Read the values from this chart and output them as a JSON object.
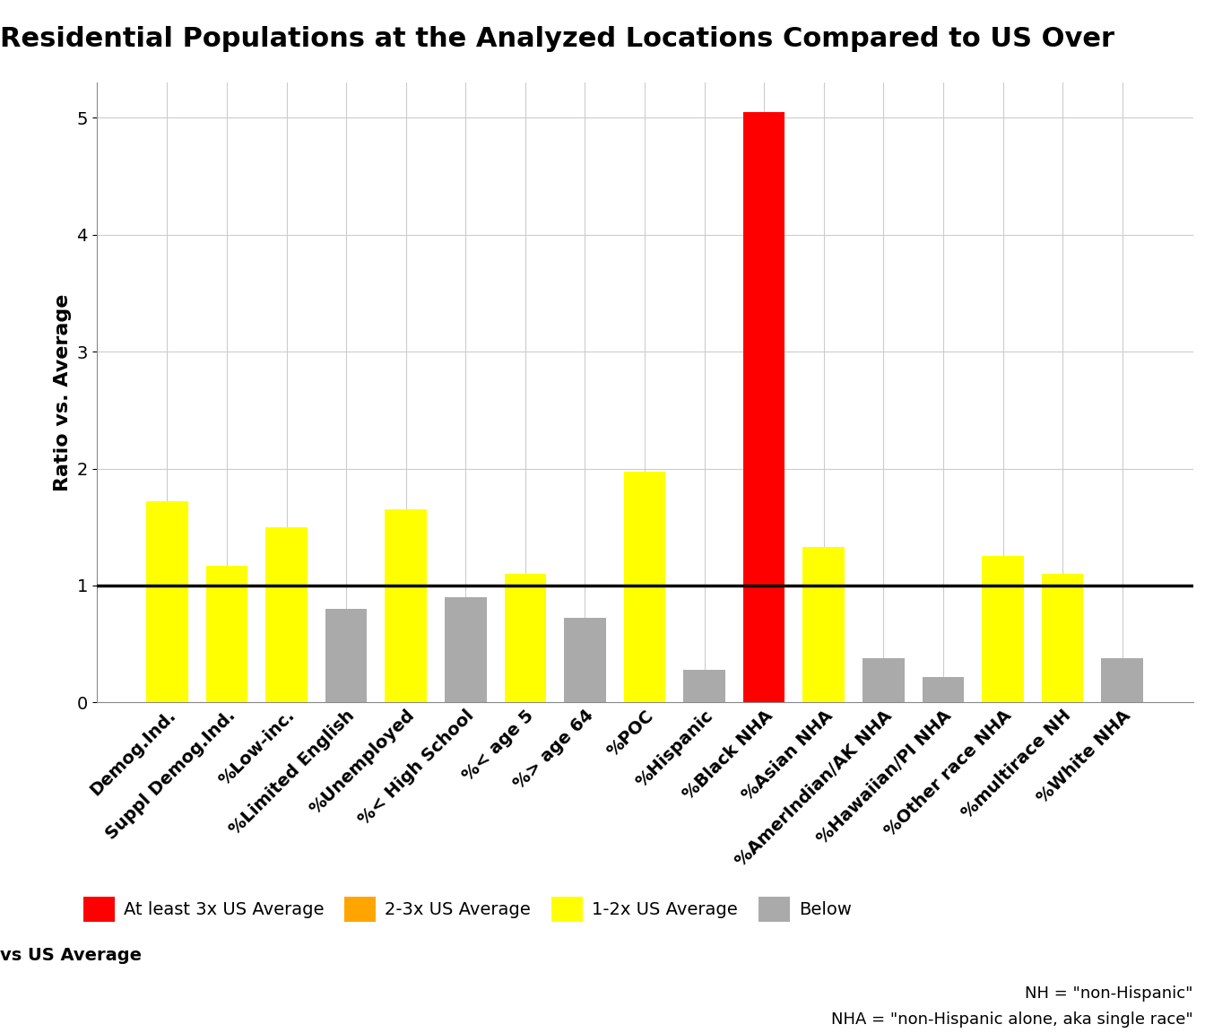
{
  "categories": [
    "Demog.Ind.",
    "Suppl Demog.Ind.",
    "%Low-inc.",
    "%Limited English",
    "%Unemployed",
    "%< High School",
    "%< age 5",
    "%> age 64",
    "%POC",
    "%Hispanic",
    "%Black NHA",
    "%Asian NHA",
    "%AmerIndian/AK NHA",
    "%Hawaiian/PI NHA",
    "%Other race NHA",
    "%multirace NH",
    "%White NHA"
  ],
  "values": [
    1.72,
    1.17,
    1.5,
    0.8,
    1.65,
    0.9,
    1.1,
    0.72,
    1.97,
    0.28,
    5.05,
    1.33,
    0.38,
    0.22,
    1.25,
    1.1,
    0.38
  ],
  "color_thresholds": {
    "red": 3.0,
    "orange": 2.0,
    "yellow": 1.0,
    "gray_below": 0.0
  },
  "colors": {
    "red": "#FF0000",
    "orange": "#FFA500",
    "yellow": "#FFFF00",
    "gray": "#AAAAAA"
  },
  "title": "Residential Populations at the Analyzed Locations Compared to US Over",
  "ylabel": "Ratio vs. Average",
  "hline_y": 1.0,
  "hline_color": "#000000",
  "ylim": [
    0,
    5.3
  ],
  "background_color": "#FFFFFF",
  "grid_color": "#CCCCCC",
  "legend_patches": [
    {
      "label": "At least 3x US Average",
      "color": "#FF0000"
    },
    {
      "label": "2-3x US Average",
      "color": "#FFA500"
    },
    {
      "label": "1-2x US Average",
      "color": "#FFFF00"
    },
    {
      "label": "Below",
      "color": "#AAAAAA"
    }
  ],
  "legend_prefix": "vs US Average",
  "footnote_line1": "NH = \"non-Hispanic\"",
  "footnote_line2": "NHA = \"non-Hispanic alone, aka single race\""
}
